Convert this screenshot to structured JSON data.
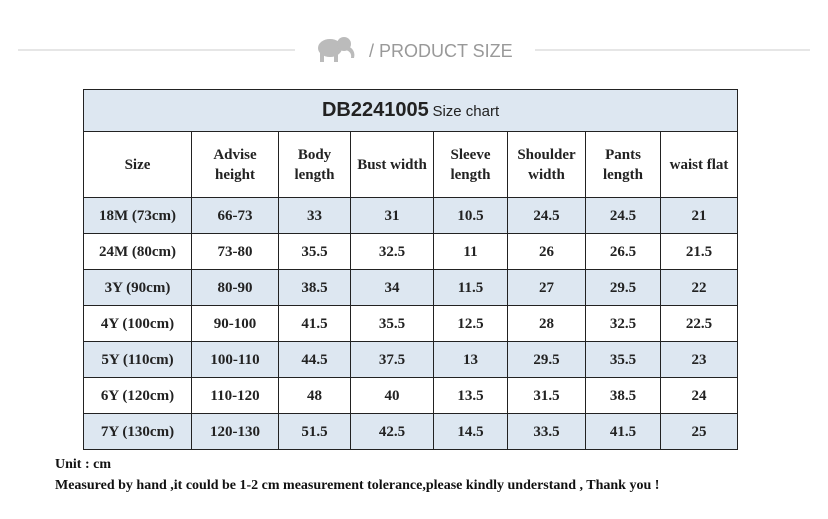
{
  "header": {
    "title": "/ PRODUCT SIZE"
  },
  "table": {
    "code": "DB2241005",
    "title": "Size chart",
    "columns": [
      "Size",
      "Advise height",
      "Body length",
      "Bust width",
      "Sleeve length",
      "Shoulder width",
      "Pants length",
      "waist flat"
    ],
    "rows": [
      [
        "18M (73cm)",
        "66-73",
        "33",
        "31",
        "10.5",
        "24.5",
        "24.5",
        "21"
      ],
      [
        "24M (80cm)",
        "73-80",
        "35.5",
        "32.5",
        "11",
        "26",
        "26.5",
        "21.5"
      ],
      [
        "3Y (90cm)",
        "80-90",
        "38.5",
        "34",
        "11.5",
        "27",
        "29.5",
        "22"
      ],
      [
        "4Y (100cm)",
        "90-100",
        "41.5",
        "35.5",
        "12.5",
        "28",
        "32.5",
        "22.5"
      ],
      [
        "5Y (110cm)",
        "100-110",
        "44.5",
        "37.5",
        "13",
        "29.5",
        "35.5",
        "23"
      ],
      [
        "6Y (120cm)",
        "110-120",
        "48",
        "40",
        "13.5",
        "31.5",
        "38.5",
        "24"
      ],
      [
        "7Y (130cm)",
        "120-130",
        "51.5",
        "42.5",
        "14.5",
        "33.5",
        "41.5",
        "25"
      ]
    ]
  },
  "notes": [
    "Unit : cm",
    "Measured by hand ,it could be 1-2 cm measurement tolerance,please kindly understand , Thank you !"
  ]
}
